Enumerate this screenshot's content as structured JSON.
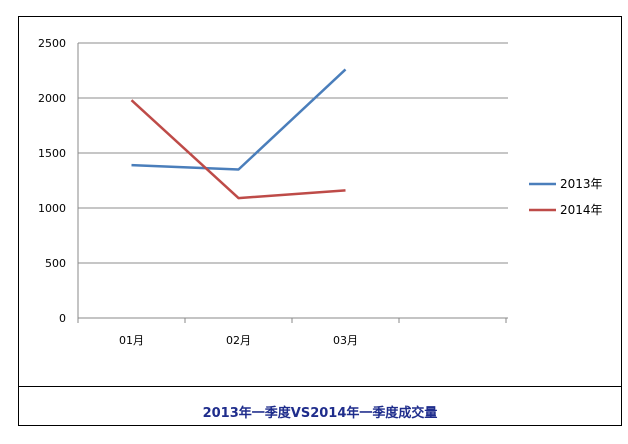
{
  "chart_data": {
    "type": "line",
    "title": "2013年一季度VS2014年一季度成交量",
    "categories": [
      "01月",
      "02月",
      "03月"
    ],
    "series": [
      {
        "name": "2013年",
        "values": [
          1390,
          1350,
          2260
        ],
        "color": "#4a7ebb"
      },
      {
        "name": "2014年",
        "values": [
          1980,
          1090,
          1160
        ],
        "color": "#be4b48"
      }
    ],
    "ylim": [
      0,
      2500
    ],
    "yticks": [
      0,
      500,
      1000,
      1500,
      2000,
      2500
    ],
    "grid": true,
    "legend": "right",
    "xlabel": "",
    "ylabel": ""
  }
}
